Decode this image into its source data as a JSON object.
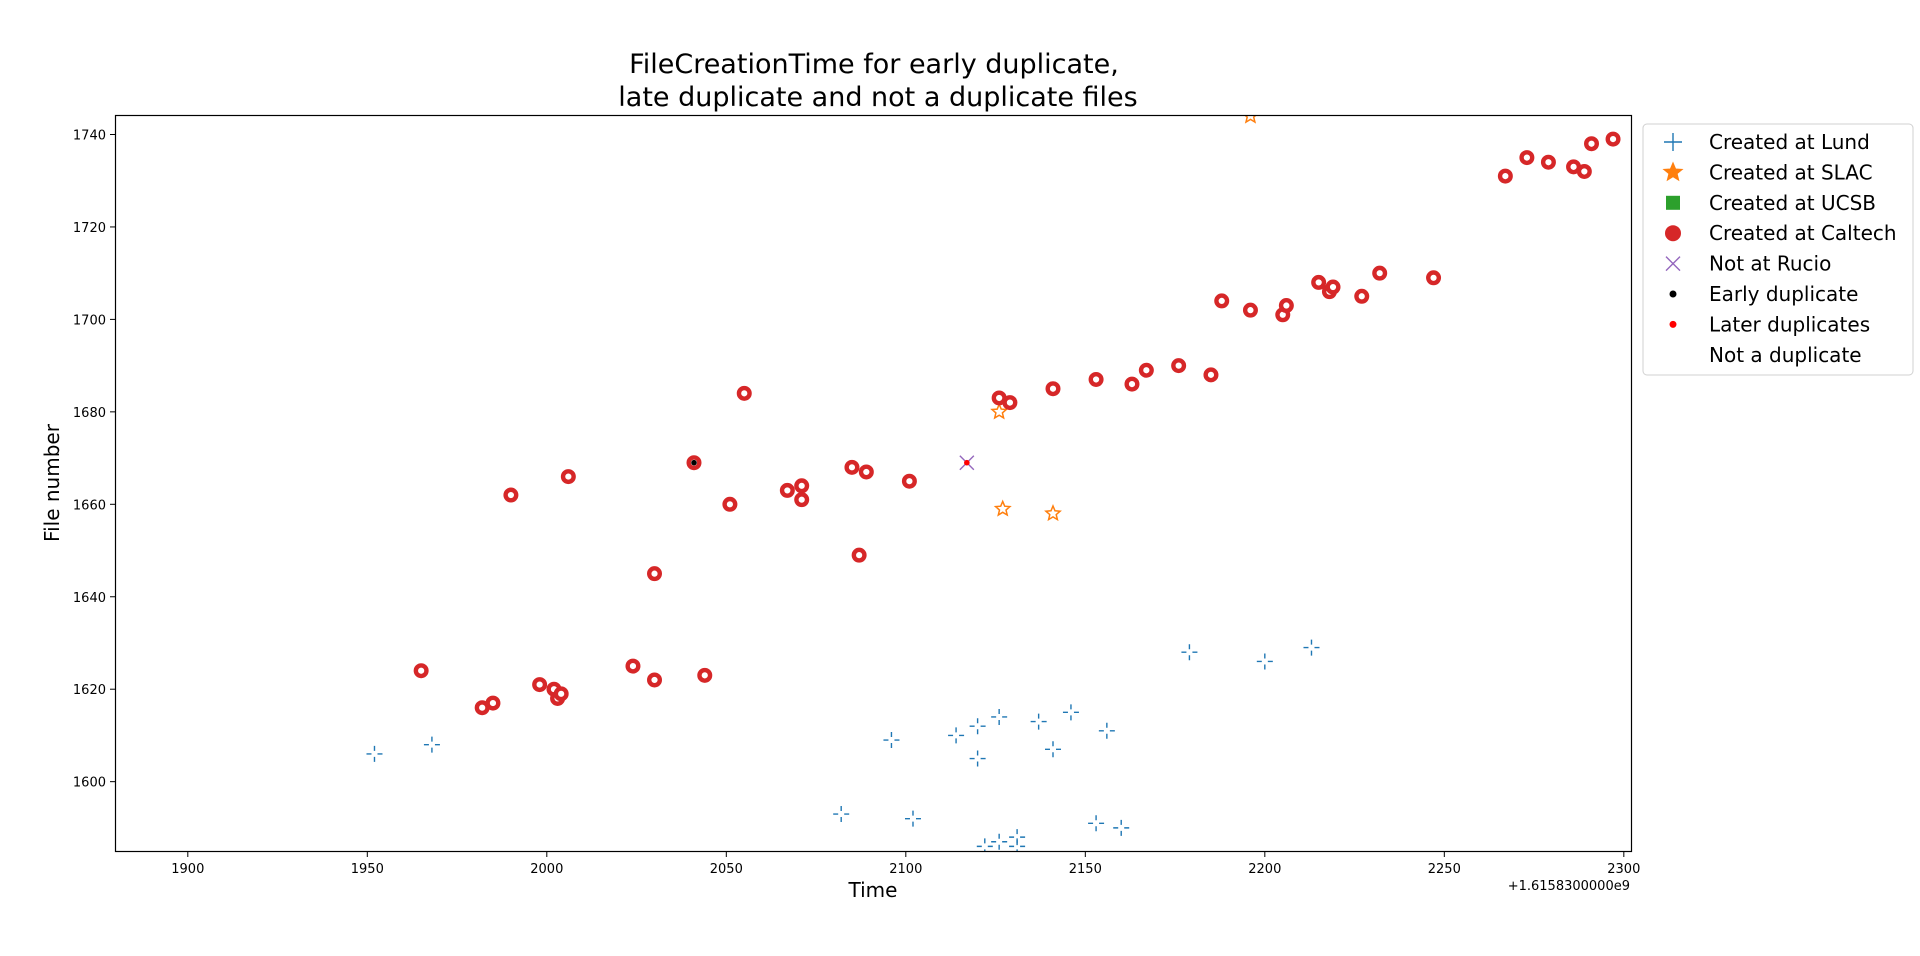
{
  "chart_data": {
    "type": "scatter",
    "title": [
      "FileCreationTime for early duplicate,",
      "late duplicate and not a duplicate files"
    ],
    "xlabel": "Time",
    "ylabel": "File number",
    "x_offset_label": "+1.6158300000e9",
    "xlim": [
      1880,
      2302
    ],
    "ylim": [
      1585,
      1744
    ],
    "x_ticks": [
      1900,
      1950,
      2000,
      2050,
      2100,
      2150,
      2200,
      2250,
      2300
    ],
    "y_ticks": [
      1600,
      1620,
      1640,
      1660,
      1680,
      1700,
      1720,
      1740
    ],
    "legend_placement": "outside right, top",
    "legend": [
      {
        "label": "Created at Lund",
        "marker": "plus",
        "color": "#1f77b4"
      },
      {
        "label": "Created at SLAC",
        "marker": "star",
        "color": "#ff7f0e"
      },
      {
        "label": "Created at UCSB",
        "marker": "square",
        "color": "#2ca02c"
      },
      {
        "label": "Created at Caltech",
        "marker": "circle",
        "color": "#d62728"
      },
      {
        "label": "Not at Rucio",
        "marker": "x",
        "color": "#9467bd"
      },
      {
        "label": "Early duplicate",
        "marker": "dot",
        "color": "#000000"
      },
      {
        "label": "Later duplicates",
        "marker": "dot",
        "color": "#ff0000"
      },
      {
        "label": "Not a duplicate",
        "marker": "dot",
        "color": "#ffffff"
      }
    ],
    "series": [
      {
        "name": "Created at Lund",
        "marker": "plus",
        "color": "#1f77b4",
        "points": [
          [
            1952,
            1606
          ],
          [
            1968,
            1608
          ],
          [
            2082,
            1593
          ],
          [
            2096,
            1609
          ],
          [
            2102,
            1592
          ],
          [
            2114,
            1610
          ],
          [
            2120,
            1612
          ],
          [
            2120,
            1605
          ],
          [
            2122,
            1586
          ],
          [
            2126,
            1614
          ],
          [
            2126,
            1587
          ],
          [
            2131,
            1588
          ],
          [
            2131,
            1586
          ],
          [
            2137,
            1613
          ],
          [
            2141,
            1607
          ],
          [
            2146,
            1615
          ],
          [
            2153,
            1591
          ],
          [
            2156,
            1611
          ],
          [
            2160,
            1590
          ],
          [
            2179,
            1628
          ],
          [
            2200,
            1626
          ],
          [
            2213,
            1629
          ]
        ]
      },
      {
        "name": "Created at SLAC",
        "marker": "star",
        "color": "#ff7f0e",
        "points": [
          [
            2126,
            1680
          ],
          [
            2127,
            1659
          ],
          [
            2141,
            1658
          ],
          [
            2196,
            1744
          ]
        ]
      },
      {
        "name": "Created at Caltech",
        "marker": "circle",
        "color": "#d62728",
        "points": [
          [
            1965,
            1624
          ],
          [
            1982,
            1616
          ],
          [
            1985,
            1617
          ],
          [
            1990,
            1662
          ],
          [
            1998,
            1621
          ],
          [
            2002,
            1620
          ],
          [
            2003,
            1618
          ],
          [
            2004,
            1619
          ],
          [
            2006,
            1666
          ],
          [
            2024,
            1625
          ],
          [
            2030,
            1622
          ],
          [
            2030,
            1645
          ],
          [
            2041,
            1669
          ],
          [
            2044,
            1623
          ],
          [
            2051,
            1660
          ],
          [
            2055,
            1684
          ],
          [
            2067,
            1663
          ],
          [
            2071,
            1664
          ],
          [
            2071,
            1661
          ],
          [
            2085,
            1668
          ],
          [
            2087,
            1649
          ],
          [
            2089,
            1667
          ],
          [
            2101,
            1665
          ],
          [
            2126,
            1683
          ],
          [
            2129,
            1682
          ],
          [
            2141,
            1685
          ],
          [
            2153,
            1687
          ],
          [
            2163,
            1686
          ],
          [
            2167,
            1689
          ],
          [
            2176,
            1690
          ],
          [
            2185,
            1688
          ],
          [
            2188,
            1704
          ],
          [
            2196,
            1702
          ],
          [
            2205,
            1701
          ],
          [
            2206,
            1703
          ],
          [
            2215,
            1708
          ],
          [
            2218,
            1706
          ],
          [
            2219,
            1707
          ],
          [
            2227,
            1705
          ],
          [
            2232,
            1710
          ],
          [
            2247,
            1709
          ],
          [
            2267,
            1731
          ],
          [
            2273,
            1735
          ],
          [
            2279,
            1734
          ],
          [
            2286,
            1733
          ],
          [
            2289,
            1732
          ],
          [
            2291,
            1738
          ],
          [
            2297,
            1739
          ]
        ]
      },
      {
        "name": "Not at Rucio",
        "marker": "x",
        "color": "#9467bd",
        "points": [
          [
            2117,
            1669
          ]
        ]
      },
      {
        "name": "Early duplicate",
        "marker": "dot",
        "color": "#000000",
        "points": [
          [
            2041,
            1669
          ]
        ]
      },
      {
        "name": "Later duplicates",
        "marker": "dot",
        "color": "#ff0000",
        "points": [
          [
            2117,
            1669
          ]
        ]
      }
    ]
  }
}
